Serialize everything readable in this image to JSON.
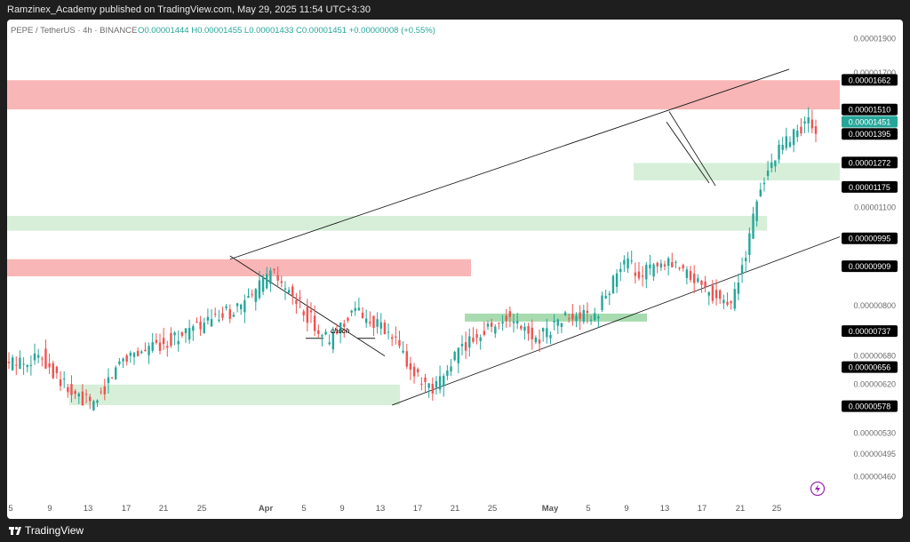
{
  "header": {
    "published": "Ramzinex_Academy published on TradingView.com, May 29, 2025 11:54 UTC+3:30"
  },
  "footer": {
    "brand": "TradingView",
    "logo_icon": "tradingview-logo-icon"
  },
  "legend": {
    "symbol": "PEPE / TetherUS · 4h · BINANCE",
    "ohlc": "O0.00001444 H0.00001455 L0.00001433 C0.00001451 +0.00000008 (+0.55%)"
  },
  "flash_icon": "lightning-icon",
  "colors": {
    "up": "#26a69a",
    "down": "#ef5350",
    "supply_zone": "#f9b6b6",
    "demand_zone": "#d7efd9",
    "demand_zone_strong": "#a8dcb0",
    "price_badge": "#26a69a",
    "label_badge": "#000000",
    "axis_text": "#6b6b6b",
    "flash": "#9c27b0"
  },
  "chart_data": {
    "type": "candlestick",
    "y_scale": "log",
    "ylim": [
      4.3e-06,
      2.02e-05
    ],
    "x_ticks": [
      "5",
      "9",
      "13",
      "17",
      "21",
      "25",
      "Apr",
      "5",
      "9",
      "13",
      "17",
      "21",
      "25",
      "May",
      "5",
      "9",
      "13",
      "17",
      "21",
      "25"
    ],
    "y_ticks": [
      "0.00001900",
      "0.00001700",
      "0.00001100",
      "0.00000800",
      "0.00000680",
      "0.00000620",
      "0.00000530",
      "0.00000495",
      "0.00000460"
    ],
    "price_labels": [
      {
        "value": "0.00001662",
        "kind": "label"
      },
      {
        "value": "0.00001510",
        "kind": "label"
      },
      {
        "value": "0.00001451",
        "kind": "current"
      },
      {
        "value": "0.00001395",
        "kind": "label"
      },
      {
        "value": "0.00001272",
        "kind": "label"
      },
      {
        "value": "0.00001175",
        "kind": "label"
      },
      {
        "value": "0.00000995",
        "kind": "label"
      },
      {
        "value": "0.00000909",
        "kind": "label"
      },
      {
        "value": "0.00000737",
        "kind": "label"
      },
      {
        "value": "0.00000656",
        "kind": "label"
      },
      {
        "value": "0.00000578",
        "kind": "label"
      }
    ],
    "annotations": [
      {
        "text": "choch"
      }
    ],
    "candle_count": 220,
    "price_path": [
      [
        0,
        6.6e-06
      ],
      [
        10,
        6.8e-06
      ],
      [
        18,
        6e-06
      ],
      [
        24,
        5.8e-06
      ],
      [
        32,
        6.8e-06
      ],
      [
        40,
        7e-06
      ],
      [
        48,
        7.3e-06
      ],
      [
        58,
        7.7e-06
      ],
      [
        66,
        8.1e-06
      ],
      [
        72,
        8.9e-06
      ],
      [
        80,
        8e-06
      ],
      [
        88,
        7.1e-06
      ],
      [
        94,
        7.9e-06
      ],
      [
        100,
        7.6e-06
      ],
      [
        106,
        7.1e-06
      ],
      [
        112,
        6.3e-06
      ],
      [
        116,
        6e-06
      ],
      [
        122,
        6.8e-06
      ],
      [
        128,
        7.3e-06
      ],
      [
        136,
        7.7e-06
      ],
      [
        144,
        7.2e-06
      ],
      [
        152,
        7.7e-06
      ],
      [
        160,
        7.7e-06
      ],
      [
        164,
        8.5e-06
      ],
      [
        168,
        9.2e-06
      ],
      [
        172,
        8.9e-06
      ],
      [
        180,
        9.1e-06
      ],
      [
        186,
        8.8e-06
      ],
      [
        192,
        8.3e-06
      ],
      [
        197,
        8e-06
      ],
      [
        201,
        9.5e-06
      ],
      [
        205,
        1.18e-05
      ],
      [
        210,
        1.32e-05
      ],
      [
        214,
        1.4e-05
      ],
      [
        218,
        1.45e-05
      ],
      [
        224,
        1.35e-05
      ],
      [
        230,
        1.25e-05
      ],
      [
        236,
        1.32e-05
      ],
      [
        240,
        1.36e-05
      ],
      [
        246,
        1.42e-05
      ],
      [
        250,
        1.6e-05
      ],
      [
        254,
        1.4e-05
      ],
      [
        258,
        1.32e-05
      ],
      [
        262,
        1.37e-05
      ],
      [
        266,
        1.4e-05
      ],
      [
        270,
        1.38e-05
      ],
      [
        274,
        1.45e-05
      ]
    ]
  }
}
